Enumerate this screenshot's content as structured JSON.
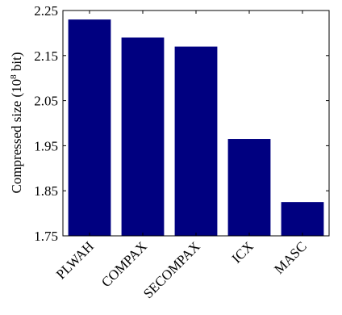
{
  "chart_data": {
    "type": "bar",
    "categories": [
      "PLWAH",
      "COMPAX",
      "SECOMPAX",
      "ICX",
      "MASC"
    ],
    "values": [
      2.23,
      2.19,
      2.17,
      1.965,
      1.825
    ],
    "ylabel": "Compressed size (10",
    "ylabel_sup": "8",
    "ylabel_end": " bit)",
    "ylim": [
      1.75,
      2.25
    ],
    "yticks": [
      1.75,
      1.85,
      1.95,
      2.05,
      2.15,
      2.25
    ],
    "ytick_labels": [
      "1.75",
      "1.85",
      "1.95",
      "2.05",
      "2.15",
      "2.25"
    ],
    "bar_color": "#000080",
    "grid": false,
    "legend": "none"
  }
}
